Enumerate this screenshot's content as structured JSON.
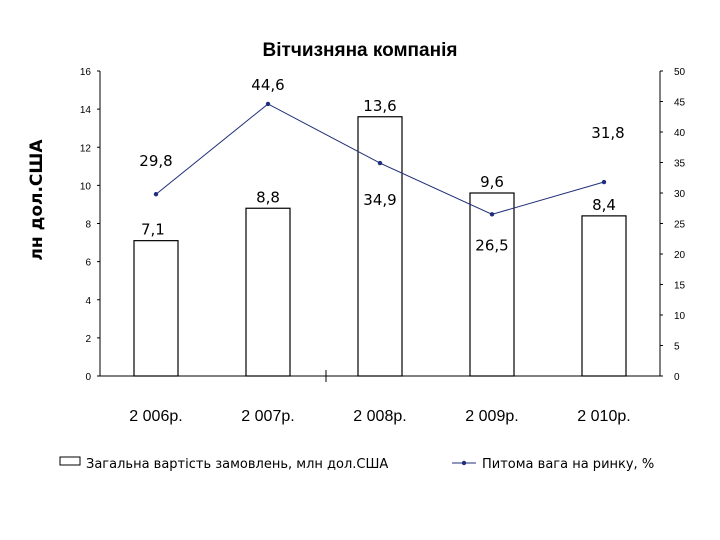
{
  "chart_data": {
    "type": "bar",
    "title": "Вітчизняна компанія",
    "ylabel_left": "лн дол.США",
    "categories": [
      "2 006р.",
      "2 007р.",
      "2 008р.",
      "2 009р.",
      "2 010р."
    ],
    "left_axis": {
      "min": 0,
      "max": 16,
      "step": 2,
      "ticks": [
        "0",
        "2",
        "4",
        "6",
        "8",
        "10",
        "12",
        "14",
        "16"
      ]
    },
    "right_axis": {
      "min": 0,
      "max": 50,
      "step": 5,
      "ticks": [
        "0",
        "5",
        "10",
        "15",
        "20",
        "25",
        "30",
        "35",
        "40",
        "45",
        "50"
      ]
    },
    "series": [
      {
        "name": "Загальна вартість замовлень, млн дол.США",
        "type": "bar",
        "axis": "left",
        "values": [
          7.1,
          8.8,
          13.6,
          9.6,
          8.4
        ],
        "labels": [
          "7,1",
          "8,8",
          "13,6",
          "9,6",
          "8,4"
        ],
        "color": "#ffffff",
        "stroke": "#000000"
      },
      {
        "name": "Питома вага на ринку, %",
        "type": "line",
        "axis": "right",
        "values": [
          29.8,
          44.6,
          34.9,
          26.5,
          31.8
        ],
        "labels": [
          "29,8",
          "44,6",
          "34,9",
          "26,5",
          "31,8"
        ],
        "color": "#1f2f7a"
      }
    ],
    "grid": false,
    "legend_position": "bottom"
  }
}
